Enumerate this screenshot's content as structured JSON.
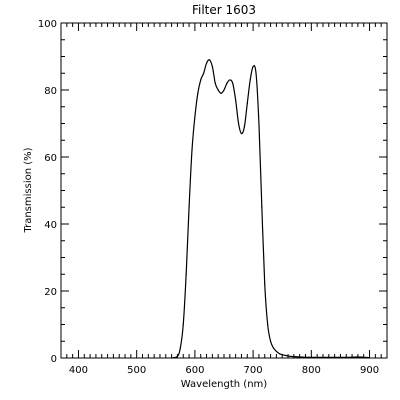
{
  "chart_data": {
    "type": "line",
    "title": "Filter 1603",
    "xlabel": "Wavelength (nm)",
    "ylabel": "Transmission (%)",
    "xlim": [
      370,
      930
    ],
    "ylim": [
      0,
      100
    ],
    "x_ticks": [
      400,
      500,
      600,
      700,
      800,
      900
    ],
    "y_ticks": [
      0,
      20,
      40,
      60,
      80,
      100
    ],
    "x_minor_step": 10,
    "y_minor_step": 5,
    "grid": false,
    "line_color": "#000000",
    "series": [
      {
        "x": [
          560,
          570,
          575,
          580,
          585,
          590,
          595,
          600,
          605,
          610,
          615,
          620,
          625,
          630,
          635,
          640,
          645,
          650,
          655,
          660,
          665,
          670,
          675,
          680,
          685,
          690,
          695,
          700,
          705,
          710,
          715,
          720,
          725,
          730,
          735,
          740,
          745,
          750,
          760,
          770,
          780,
          800,
          820,
          840,
          860,
          880,
          900
        ],
        "y": [
          0,
          0.5,
          3,
          10,
          25,
          45,
          62,
          72,
          79,
          83,
          85,
          88,
          89,
          87,
          82,
          80,
          79,
          80,
          82,
          83,
          82,
          77,
          70,
          67,
          69,
          76,
          83,
          87,
          85,
          70,
          45,
          22,
          10,
          5,
          3,
          2,
          1.3,
          1,
          0.6,
          0.4,
          0.3,
          0.2,
          0.2,
          0.2,
          0.2,
          0.3,
          0.1
        ]
      }
    ]
  }
}
